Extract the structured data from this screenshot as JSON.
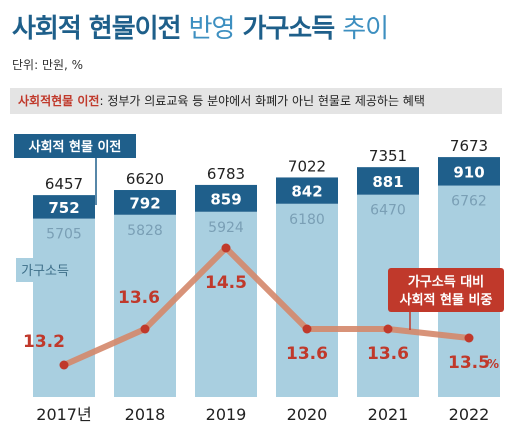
{
  "title": {
    "part1": "사회적 현물이전",
    "part2": "반영",
    "part3": "가구소득",
    "part4": "추이"
  },
  "unit": "단위: 만원, %",
  "note": {
    "key": "사회적현물 이전",
    "text": ": 정부가 의료교육 등 분야에서 화폐가 아닌 현물로 제공하는 혜택"
  },
  "chart_data": {
    "type": "bar",
    "categories": [
      "2017년",
      "2018",
      "2019",
      "2020",
      "2021",
      "2022"
    ],
    "series": [
      {
        "name": "가구소득",
        "values": [
          5705,
          5828,
          5924,
          6180,
          6470,
          6762
        ]
      },
      {
        "name": "사회적 현물 이전",
        "values": [
          752,
          792,
          859,
          842,
          881,
          910
        ]
      }
    ],
    "totals": [
      6457,
      6620,
      6783,
      7022,
      7351,
      7673
    ],
    "ratio": {
      "name": "가구소득 대비 사회적 현물 비중",
      "name_line1": "가구소득 대비",
      "name_line2": "사회적 현물 비중",
      "values": [
        13.2,
        13.6,
        14.5,
        13.6,
        13.6,
        13.5
      ],
      "unit": "%"
    },
    "colors": {
      "income": "#a9cfe0",
      "cash": "#1f5f8b",
      "ratio_line": "#d4876a",
      "ratio_point": "#c0392b"
    }
  }
}
